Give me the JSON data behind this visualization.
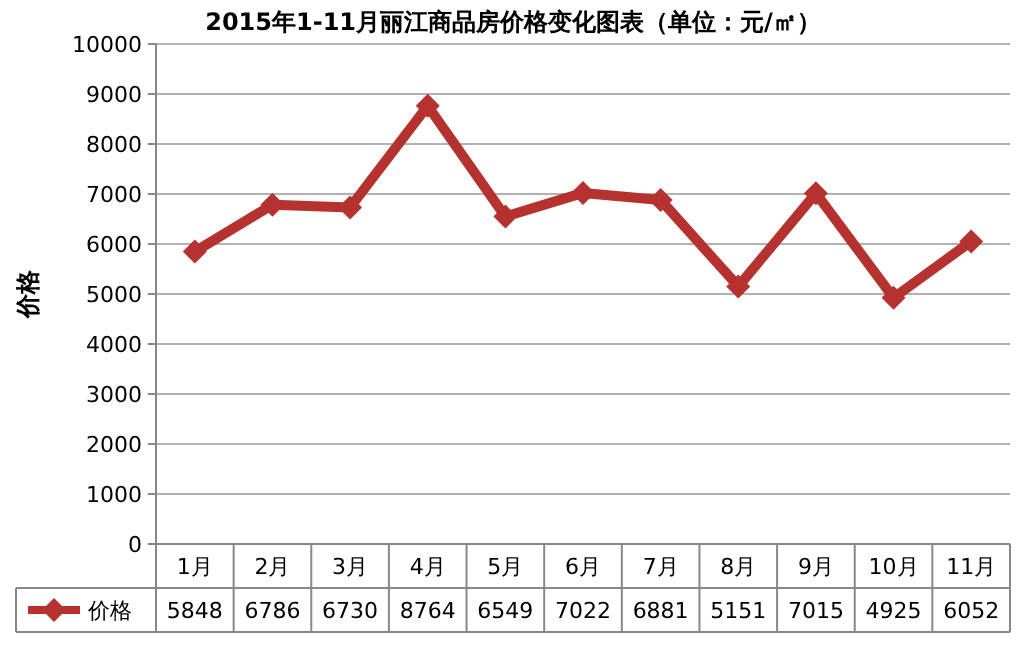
{
  "chart_data": {
    "type": "line",
    "title": "2015年1-11月丽江商品房价格变化图表（单位：元/㎡）",
    "ylabel": "价格",
    "categories": [
      "1月",
      "2月",
      "3月",
      "4月",
      "5月",
      "6月",
      "7月",
      "8月",
      "9月",
      "10月",
      "11月"
    ],
    "series": [
      {
        "name": "价格",
        "color": "#b5322f",
        "values": [
          5848,
          6786,
          6730,
          8764,
          6549,
          7022,
          6881,
          5151,
          7015,
          4925,
          6052
        ]
      }
    ],
    "ylim": [
      0,
      10000
    ],
    "yticks": [
      0,
      1000,
      2000,
      3000,
      4000,
      5000,
      6000,
      7000,
      8000,
      9000,
      10000
    ],
    "grid": "y",
    "legend": "bottom",
    "marker": "diamond",
    "line_style": "solid",
    "data_labels": true
  }
}
